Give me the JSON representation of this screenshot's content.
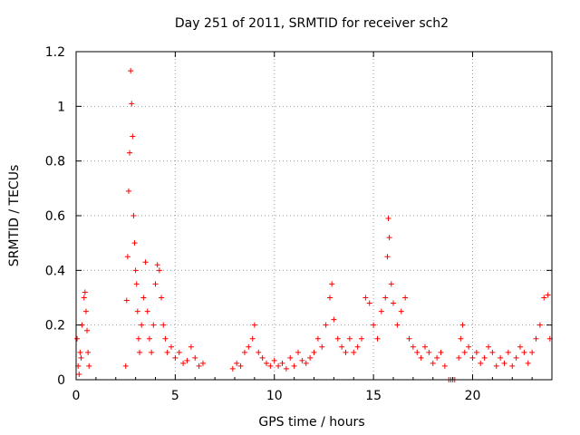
{
  "chart_data": {
    "type": "scatter",
    "title": "Day 251 of 2011, SRMTID for receiver sch2",
    "xlabel": "GPS time / hours",
    "ylabel": "SRMTID / TECUs",
    "xlim": [
      0,
      24
    ],
    "ylim": [
      0,
      1.2
    ],
    "x_ticks": [
      0,
      5,
      10,
      15,
      20
    ],
    "x_tick_labels": [
      "0",
      "5",
      "10",
      "15",
      "20"
    ],
    "y_ticks": [
      0,
      0.2,
      0.4,
      0.6,
      0.8,
      1.0,
      1.2
    ],
    "y_tick_labels": [
      "0",
      "0.2",
      "0.4",
      "0.6",
      "0.8",
      "1",
      "1.2"
    ],
    "grid": true,
    "marker": "+",
    "color": "#ff0000",
    "series": [
      {
        "name": "SRMTID",
        "x": [
          0.05,
          0.1,
          0.15,
          0.2,
          0.25,
          0.3,
          0.4,
          0.45,
          0.5,
          0.55,
          0.6,
          0.65,
          2.5,
          2.55,
          2.6,
          2.65,
          2.7,
          2.75,
          2.8,
          2.85,
          2.9,
          2.95,
          3.0,
          3.05,
          3.1,
          3.15,
          3.2,
          3.3,
          3.4,
          3.5,
          3.6,
          3.7,
          3.8,
          3.9,
          4.0,
          4.1,
          4.2,
          4.3,
          4.4,
          4.5,
          4.6,
          4.8,
          5.0,
          5.2,
          5.4,
          5.6,
          5.8,
          6.0,
          6.2,
          6.4,
          7.9,
          8.1,
          8.3,
          8.5,
          8.7,
          8.9,
          9.0,
          9.2,
          9.4,
          9.6,
          9.8,
          10.0,
          10.2,
          10.4,
          10.6,
          10.8,
          11.0,
          11.2,
          11.4,
          11.6,
          11.8,
          12.0,
          12.2,
          12.4,
          12.6,
          12.8,
          12.9,
          13.0,
          13.2,
          13.4,
          13.6,
          13.8,
          14.0,
          14.2,
          14.4,
          14.6,
          14.8,
          15.0,
          15.2,
          15.4,
          15.6,
          15.7,
          15.75,
          15.8,
          15.9,
          16.0,
          16.2,
          16.4,
          16.6,
          16.8,
          17.0,
          17.2,
          17.4,
          17.6,
          17.8,
          18.0,
          18.2,
          18.4,
          18.6,
          18.8,
          18.9,
          19.0,
          19.1,
          19.3,
          19.4,
          19.5,
          19.6,
          19.8,
          20.0,
          20.2,
          20.4,
          20.6,
          20.8,
          21.0,
          21.2,
          21.4,
          21.6,
          21.8,
          22.0,
          22.2,
          22.4,
          22.6,
          22.8,
          23.0,
          23.2,
          23.4,
          23.6,
          23.8,
          23.9
        ],
        "y": [
          0.15,
          0.05,
          0.02,
          0.1,
          0.08,
          0.2,
          0.3,
          0.32,
          0.25,
          0.18,
          0.1,
          0.05,
          0.05,
          0.29,
          0.45,
          0.69,
          0.83,
          1.13,
          1.01,
          0.89,
          0.6,
          0.5,
          0.4,
          0.35,
          0.25,
          0.15,
          0.1,
          0.2,
          0.3,
          0.43,
          0.25,
          0.15,
          0.1,
          0.2,
          0.35,
          0.42,
          0.4,
          0.3,
          0.2,
          0.15,
          0.1,
          0.12,
          0.08,
          0.1,
          0.06,
          0.07,
          0.12,
          0.08,
          0.05,
          0.06,
          0.04,
          0.06,
          0.05,
          0.1,
          0.12,
          0.15,
          0.2,
          0.1,
          0.08,
          0.06,
          0.05,
          0.07,
          0.05,
          0.06,
          0.04,
          0.08,
          0.05,
          0.1,
          0.07,
          0.06,
          0.08,
          0.1,
          0.15,
          0.12,
          0.2,
          0.3,
          0.35,
          0.22,
          0.15,
          0.12,
          0.1,
          0.15,
          0.1,
          0.12,
          0.15,
          0.3,
          0.28,
          0.2,
          0.15,
          0.25,
          0.3,
          0.45,
          0.59,
          0.52,
          0.35,
          0.28,
          0.2,
          0.25,
          0.3,
          0.15,
          0.12,
          0.1,
          0.08,
          0.12,
          0.1,
          0.06,
          0.08,
          0.1,
          0.05,
          0.0,
          0.0,
          0.0,
          0.0,
          0.08,
          0.15,
          0.2,
          0.1,
          0.12,
          0.08,
          0.1,
          0.06,
          0.08,
          0.12,
          0.1,
          0.05,
          0.08,
          0.06,
          0.1,
          0.05,
          0.08,
          0.12,
          0.1,
          0.06,
          0.1,
          0.15,
          0.2,
          0.3,
          0.31,
          0.15
        ]
      }
    ]
  }
}
